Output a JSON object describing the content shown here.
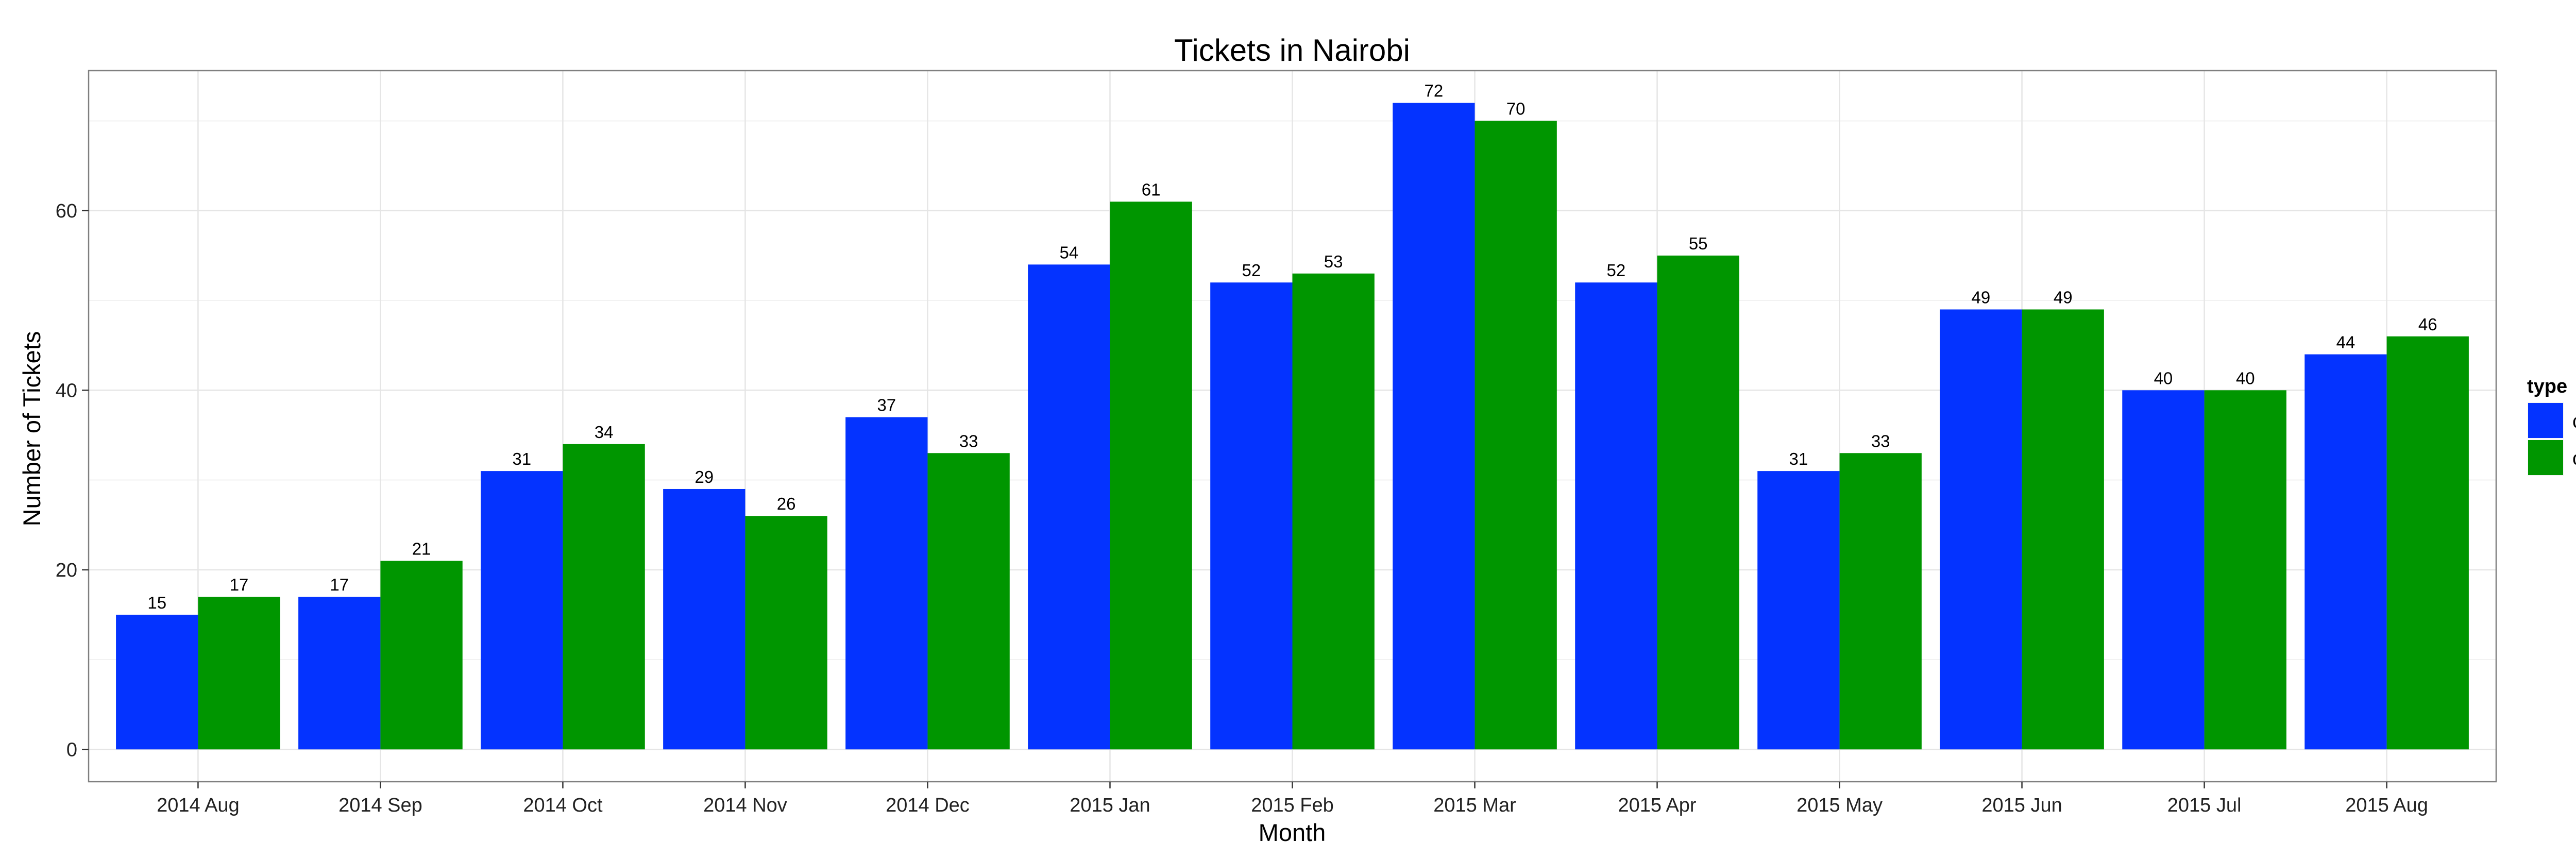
{
  "chart_data": {
    "type": "bar",
    "title": "Tickets in Nairobi",
    "xlabel": "Month",
    "ylabel": "Number of Tickets",
    "categories": [
      "2014 Aug",
      "2014 Sep",
      "2014 Oct",
      "2014 Nov",
      "2014 Dec",
      "2015 Jan",
      "2015 Feb",
      "2015 Mar",
      "2015 Apr",
      "2015 May",
      "2015 Jun",
      "2015 Jul",
      "2015 Aug"
    ],
    "series": [
      {
        "name": "closed",
        "color": "#0433ff",
        "values": [
          15,
          17,
          31,
          29,
          37,
          54,
          52,
          72,
          52,
          31,
          49,
          40,
          44
        ]
      },
      {
        "name": "open",
        "color": "#009600",
        "values": [
          17,
          21,
          34,
          26,
          33,
          61,
          53,
          70,
          55,
          33,
          49,
          40,
          46
        ]
      }
    ],
    "ylim": [
      -3.6,
      75.6
    ],
    "yticks": [
      0,
      20,
      40,
      60
    ],
    "grid": true,
    "legend": {
      "title": "type",
      "position": "right"
    },
    "data_labels": true
  }
}
